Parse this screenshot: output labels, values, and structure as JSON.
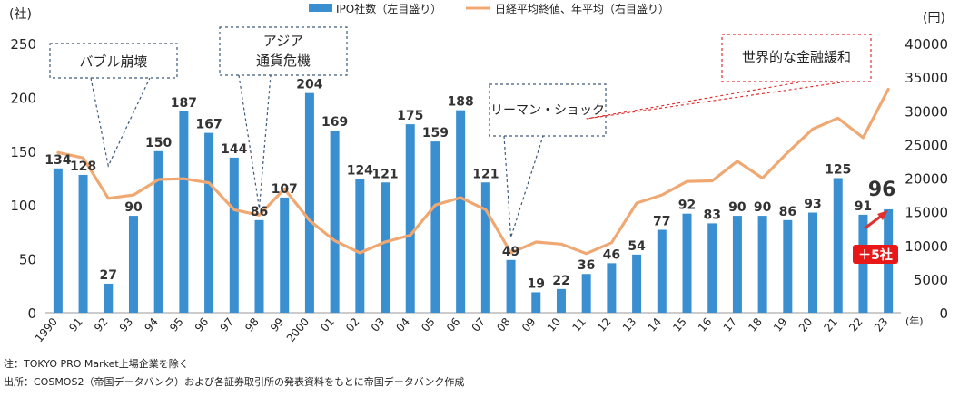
{
  "chart_data": {
    "type": "bar+line",
    "categories": [
      "1990",
      "91",
      "92",
      "93",
      "94",
      "95",
      "96",
      "97",
      "98",
      "99",
      "2000",
      "01",
      "02",
      "03",
      "04",
      "05",
      "06",
      "07",
      "08",
      "09",
      "10",
      "11",
      "12",
      "13",
      "14",
      "15",
      "16",
      "17",
      "18",
      "19",
      "20",
      "21",
      "22",
      "23"
    ],
    "series": [
      {
        "name": "IPO社数（左目盛り）",
        "type": "bar",
        "axis": "left",
        "values": [
          134,
          128,
          27,
          90,
          150,
          187,
          167,
          144,
          86,
          107,
          204,
          169,
          124,
          121,
          175,
          159,
          188,
          121,
          49,
          19,
          22,
          36,
          46,
          54,
          77,
          92,
          83,
          90,
          90,
          86,
          93,
          125,
          91,
          96
        ]
      },
      {
        "name": "日経平均終値、年平均（右目盛り）",
        "type": "line",
        "axis": "right",
        "values": [
          23800,
          23000,
          17000,
          17500,
          19800,
          19900,
          19300,
          15300,
          14500,
          18400,
          13700,
          10700,
          8900,
          10500,
          11500,
          16000,
          17100,
          15300,
          8900,
          10500,
          10200,
          8800,
          10400,
          16300,
          17500,
          19500,
          19600,
          22500,
          20000,
          23800,
          27300,
          28900,
          26000,
          33200
        ]
      }
    ],
    "left_axis": {
      "unit": "(社)",
      "ticks": [
        "0",
        "50",
        "100",
        "150",
        "200",
        "250"
      ],
      "range": [
        0,
        250
      ]
    },
    "right_axis": {
      "unit": "(円)",
      "ticks": [
        "0",
        "5000",
        "10000",
        "15000",
        "20000",
        "25000",
        "30000",
        "35000",
        "40000"
      ],
      "range": [
        0,
        40000
      ]
    },
    "x_unit": "(年)",
    "annotations": [
      {
        "id": "bubble",
        "text": "バブル崩壊",
        "target_index": 2
      },
      {
        "id": "asia",
        "text_lines": [
          "アジア",
          "通貨危機"
        ],
        "target_index": 8
      },
      {
        "id": "lehman",
        "text": "リーマン・ショック",
        "target_index": 18
      },
      {
        "id": "easing",
        "text": "世界的な金融緩和",
        "target_index": 21
      }
    ],
    "highlight": {
      "index": 33,
      "label": "96",
      "badge": "＋5社"
    },
    "colors": {
      "bar": "#3a8fd0",
      "line": "#f0a873",
      "dashed_blue": "#3d5a7a",
      "dashed_red": "#e03030",
      "badge": "#e81818",
      "arrow": "#e03030"
    }
  },
  "notes": {
    "note1": "注：TOKYO PRO Market上場企業を除く",
    "note2": "出所：COSMOS2（帝国データバンク）および各証券取引所の発表資料をもとに帝国データバンク作成"
  }
}
